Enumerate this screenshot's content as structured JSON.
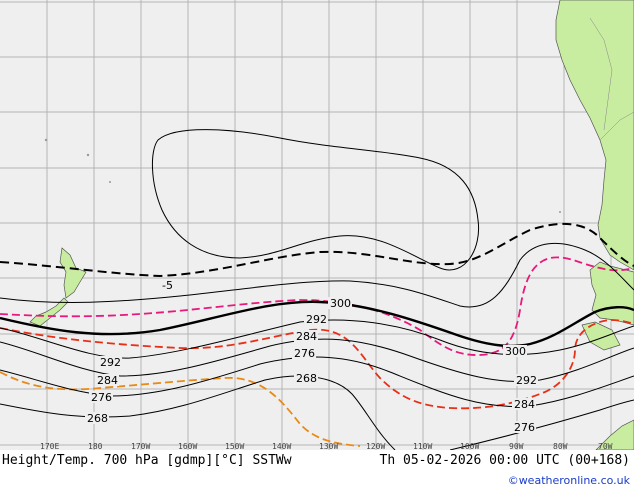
{
  "title": "Height/Temp. 700 hPa [gdmp][°C] SSTWw",
  "valid_time": "Th 05-02-2026 00:00 UTC (00+168)",
  "credit": "©weatheronline.co.uk",
  "lon_ticks": [
    "170E",
    "180",
    "170W",
    "160W",
    "150W",
    "140W",
    "130W",
    "120W",
    "110W",
    "100W",
    "90W",
    "80W",
    "70W"
  ],
  "height_contours": [
    "300",
    "292",
    "284",
    "292",
    "284",
    "276",
    "268",
    "300",
    "292",
    "284",
    "276"
  ],
  "temp_contours": [
    "-5"
  ],
  "colors": {
    "ocean": "#efefef",
    "land": "#c8eda0",
    "grid": "#b4b4b4",
    "height_line": "#000000",
    "temp_line_magenta": "#e8187c",
    "temp_line_red": "#e83018",
    "temp_line_orange": "#e88a18",
    "credit_text": "#1a3cc8"
  }
}
